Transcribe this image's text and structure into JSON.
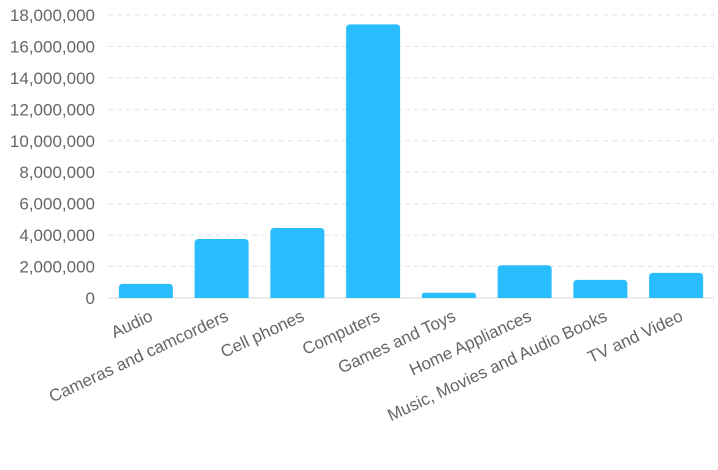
{
  "chart_data": {
    "type": "bar",
    "title": "",
    "xlabel": "",
    "ylabel": "",
    "categories": [
      "Audio",
      "Cameras and camcorders",
      "Cell phones",
      "Computers",
      "Games and Toys",
      "Home Appliances",
      "Music, Movies and Audio Books",
      "TV and Video"
    ],
    "values": [
      900000,
      3750000,
      4450000,
      17400000,
      330000,
      2080000,
      1150000,
      1600000
    ],
    "ylim": [
      0,
      18000000
    ],
    "yticks": [
      0,
      2000000,
      4000000,
      6000000,
      8000000,
      10000000,
      12000000,
      14000000,
      16000000,
      18000000
    ],
    "ytick_labels": [
      "0",
      "2,000,000",
      "4,000,000",
      "6,000,000",
      "8,000,000",
      "10,000,000",
      "12,000,000",
      "14,000,000",
      "16,000,000",
      "18,000,000"
    ],
    "grid": true,
    "legend": "none",
    "bar_color": "#29bdfd",
    "gridline_color": "#e3e3e3",
    "label_color": "#666666"
  }
}
